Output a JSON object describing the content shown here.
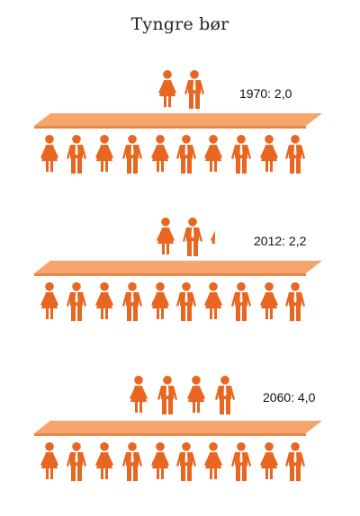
{
  "title": "Tyngre bør",
  "colors": {
    "figure": "#e8661f",
    "board_top": "#f6a56e",
    "board_side": "#e58a4c"
  },
  "icons": {
    "person": "person-icon"
  },
  "panels": [
    {
      "label": "1970: 2,0",
      "value": 2.0,
      "below_count": 10
    },
    {
      "label": "2012: 2,2",
      "value": 2.2,
      "below_count": 10
    },
    {
      "label": "2060: 4,0",
      "value": 4.0,
      "below_count": 10
    }
  ]
}
